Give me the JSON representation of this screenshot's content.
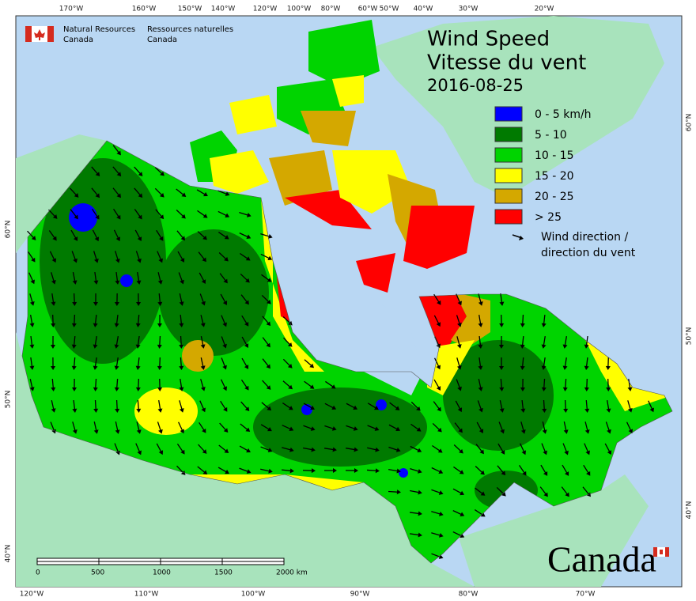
{
  "header": {
    "agency_en": [
      "Natural Resources",
      "Canada"
    ],
    "agency_fr": [
      "Ressources naturelles",
      "Canada"
    ],
    "title": "Wind Speed",
    "title_fr": "Vitesse du vent",
    "date": "2016-08-25"
  },
  "legend": {
    "items": [
      {
        "label": "0 - 5 km/h",
        "color": "#0000ff"
      },
      {
        "label": "5 - 10",
        "color": "#007a00"
      },
      {
        "label": "10 - 15",
        "color": "#00d400"
      },
      {
        "label": "15 - 20",
        "color": "#ffff00"
      },
      {
        "label": "20 - 25",
        "color": "#d4a800"
      },
      {
        "label": "> 25",
        "color": "#ff0000"
      }
    ],
    "direction": [
      "Wind direction /",
      "direction du vent"
    ]
  },
  "graticule": {
    "top": [
      "170°W",
      "160°W",
      "150°W",
      "140°W",
      "120°W",
      "100°W",
      "80°W",
      "60°W",
      "50°W",
      "40°W",
      "30°W",
      "20°W"
    ],
    "bottom": [
      "120°W",
      "110°W",
      "100°W",
      "90°W",
      "80°W",
      "70°W"
    ],
    "left": [
      "60°N",
      "50°N",
      "40°N"
    ],
    "right": [
      "60°N",
      "50°N",
      "40°N"
    ]
  },
  "scale_bar": [
    "0",
    "500",
    "1000",
    "1500",
    "2000 km"
  ],
  "wordmark": "Canada"
}
